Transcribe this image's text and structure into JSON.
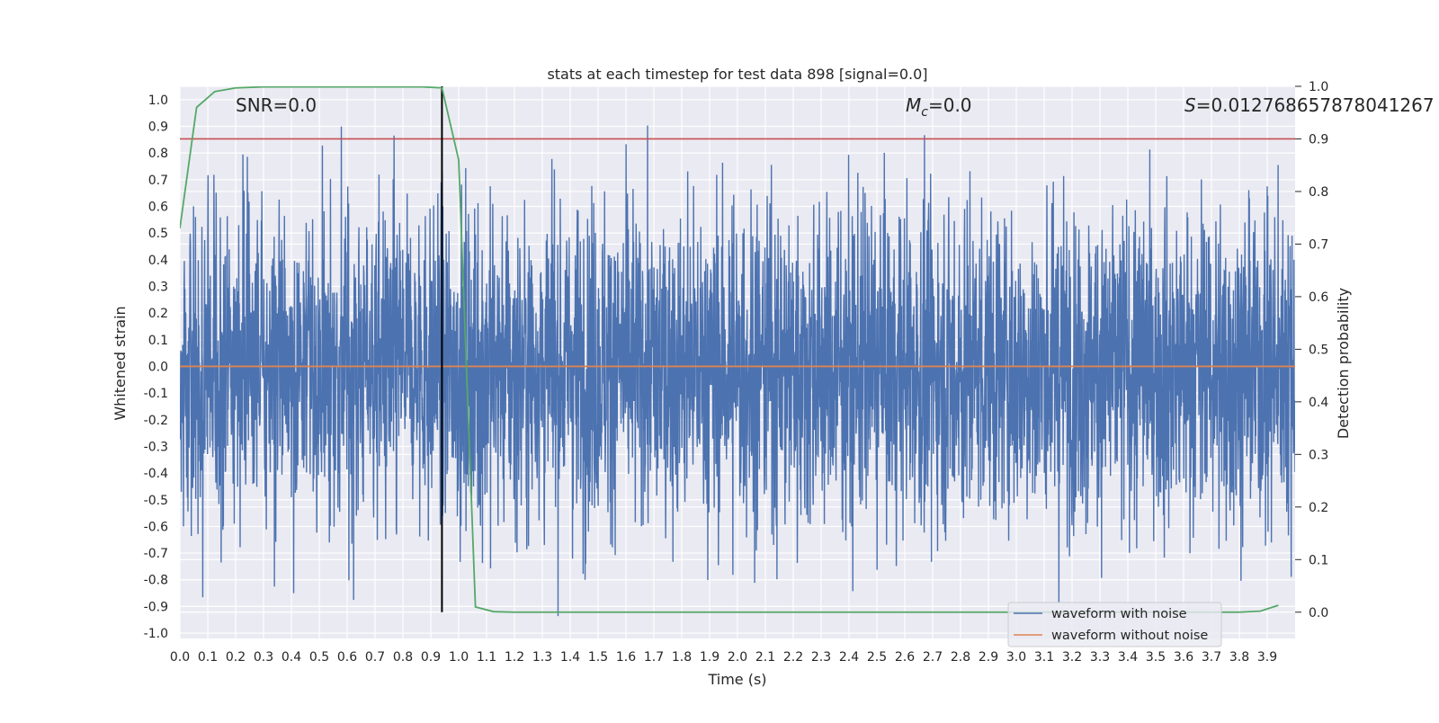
{
  "chart_data": {
    "type": "line",
    "title": "stats at each timestep for test data 898 [signal=0.0]",
    "xlabel": "Time (s)",
    "ylabel": "Whitened strain",
    "y2label": "Detection probability",
    "xlim": [
      0.0,
      4.0
    ],
    "ylim": [
      -1.02,
      1.05
    ],
    "y2lim": [
      -0.05,
      1.0
    ],
    "xticks": [
      "0.0",
      "0.1",
      "0.2",
      "0.3",
      "0.4",
      "0.5",
      "0.6",
      "0.7",
      "0.8",
      "0.9",
      "1.0",
      "1.1",
      "1.2",
      "1.3",
      "1.4",
      "1.5",
      "1.6",
      "1.7",
      "1.8",
      "1.9",
      "2.0",
      "2.1",
      "2.2",
      "2.3",
      "2.4",
      "2.5",
      "2.6",
      "2.7",
      "2.8",
      "2.9",
      "3.0",
      "3.1",
      "3.2",
      "3.3",
      "3.4",
      "3.5",
      "3.6",
      "3.7",
      "3.8",
      "3.9"
    ],
    "yticks": [
      "1.0",
      "0.9",
      "0.8",
      "0.7",
      "0.6",
      "0.5",
      "0.4",
      "0.3",
      "0.2",
      "0.1",
      "0.0",
      "-0.1",
      "-0.2",
      "-0.3",
      "-0.4",
      "-0.5",
      "-0.6",
      "-0.7",
      "-0.8",
      "-0.9",
      "-1.0"
    ],
    "y2ticks": [
      "1.0",
      "0.9",
      "0.8",
      "0.7",
      "0.6",
      "0.5",
      "0.4",
      "0.3",
      "0.2",
      "0.1",
      "0.0"
    ],
    "grid": true,
    "legend_position": "lower-right",
    "annotations": {
      "snr": "SNR=0.0",
      "mc_symbol": "M",
      "mc_sub": "c",
      "mc_value": "=0.0",
      "s_symbol": "S",
      "s_value": "=0.012768657878041267"
    },
    "threshold": {
      "value": 0.9,
      "axis": "y2",
      "color": "#c44e52"
    },
    "marker_time": 0.94,
    "series": [
      {
        "name": "waveform with noise",
        "color": "#4c72b0",
        "kind": "noise",
        "n_samples": 4000,
        "amplitude_scale": 0.3,
        "max_abs": 1.0
      },
      {
        "name": "waveform without noise",
        "color": "#dd8452",
        "x": [
          0.0,
          4.0
        ],
        "y": [
          0.0,
          0.0
        ]
      },
      {
        "name": "detection probability",
        "axis": "y2",
        "color": "#55a868",
        "x": [
          0.0,
          0.06,
          0.125,
          0.2,
          0.3,
          0.5,
          0.7,
          0.87,
          0.94,
          1.0,
          1.06,
          1.125,
          1.2,
          1.5,
          2.0,
          2.5,
          3.0,
          3.5,
          3.8,
          3.875,
          3.94
        ],
        "y": [
          0.73,
          0.96,
          0.99,
          0.997,
          0.999,
          0.999,
          0.999,
          0.999,
          0.997,
          0.86,
          0.01,
          0.001,
          0.0,
          0.0,
          0.0,
          0.0,
          0.0,
          0.0,
          0.0,
          0.002,
          0.013
        ]
      }
    ]
  }
}
